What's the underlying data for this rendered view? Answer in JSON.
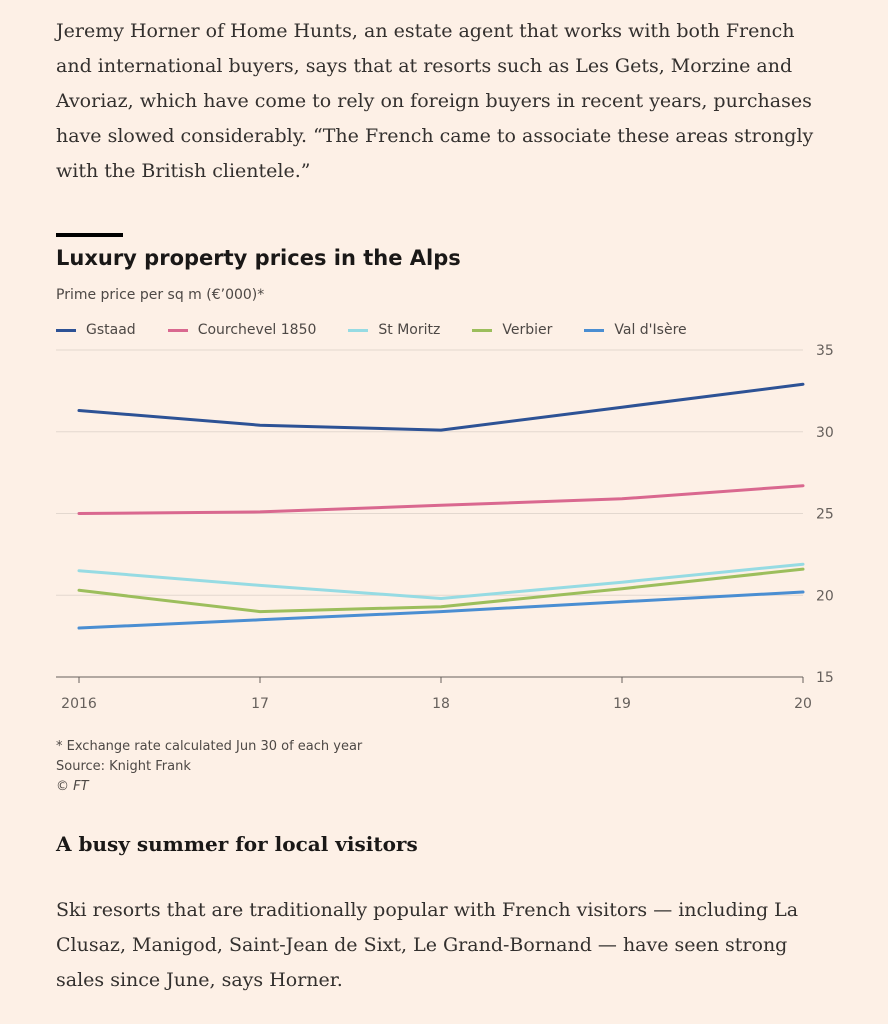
{
  "article": {
    "paragraph_1": "Jeremy Horner of Home Hunts, an estate agent that works with both French and international buyers, says that at resorts such as Les Gets, Morzine and Avoriaz, which have come to rely on foreign buyers in recent years, purchases have slowed considerably. “The French came to associate these areas strongly with the British clientele.”",
    "section_heading": "A busy summer for local visitors",
    "paragraph_2": "Ski resorts that are traditionally popular with French visitors — including La Clusaz, Manigod, Saint-Jean de Sixt, Le Grand-Bornand — have seen strong sales since June, says Horner."
  },
  "chart_data": {
    "type": "line",
    "title": "Luxury property prices in the Alps",
    "subtitle": "Prime price per sq m (€’000)*",
    "x": [
      2016,
      2017,
      2018,
      2019,
      2020
    ],
    "x_tick_labels": [
      "2016",
      "17",
      "18",
      "19",
      "20"
    ],
    "ylim": [
      15,
      35
    ],
    "y_ticks": [
      15,
      20,
      25,
      30,
      35
    ],
    "y_axis_side": "right",
    "grid": "horizontal",
    "legend_position": "top",
    "series": [
      {
        "name": "Gstaad",
        "color": "#2d5295",
        "values": [
          31.3,
          30.4,
          30.1,
          31.5,
          32.9
        ]
      },
      {
        "name": "Courchevel 1850",
        "color": "#d9688f",
        "values": [
          25.0,
          25.1,
          25.5,
          25.9,
          26.7
        ]
      },
      {
        "name": "St Moritz",
        "color": "#96dbe3",
        "values": [
          21.5,
          20.6,
          19.8,
          20.8,
          21.9
        ]
      },
      {
        "name": "Verbier",
        "color": "#9cbe5c",
        "values": [
          20.3,
          19.0,
          19.3,
          20.4,
          21.6
        ]
      },
      {
        "name": "Val d'Isère",
        "color": "#4a8ed2",
        "values": [
          18.0,
          18.5,
          19.0,
          19.6,
          20.2
        ]
      }
    ],
    "notes": {
      "footnote": "* Exchange rate calculated Jun 30 of each year",
      "source": "Source: Knight Frank",
      "copyright": "© FT"
    }
  }
}
